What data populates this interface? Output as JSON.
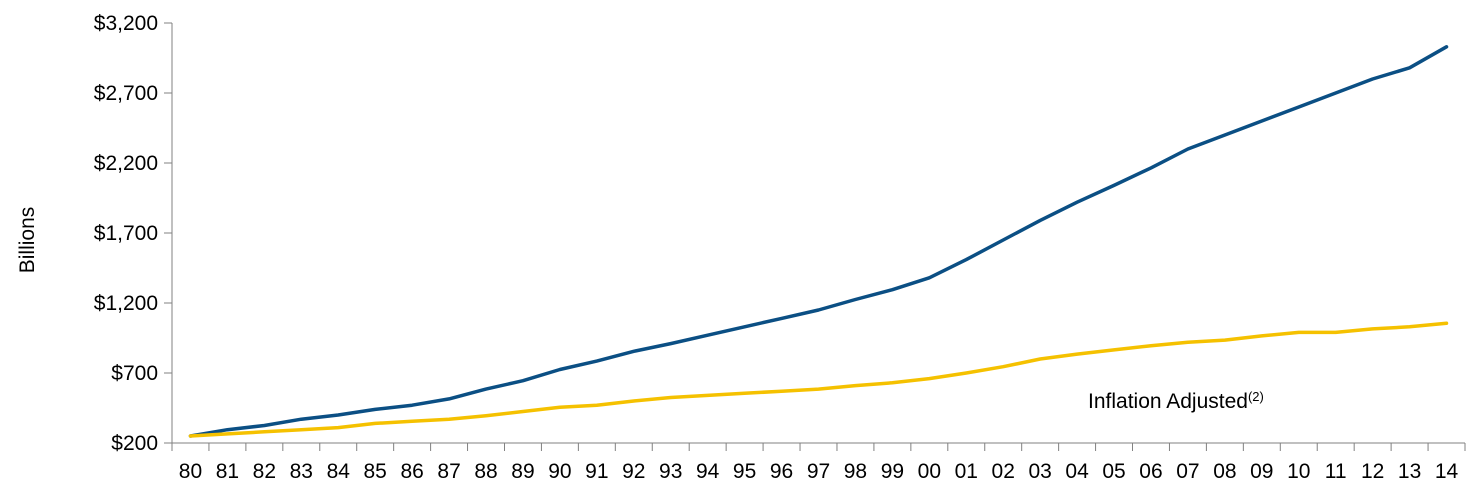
{
  "chart_data": {
    "type": "line",
    "title": "",
    "xlabel": "",
    "ylabel": "Billions",
    "ylim": [
      200,
      3200
    ],
    "yticks": [
      200,
      700,
      1200,
      1700,
      2200,
      2700,
      3200
    ],
    "ytick_labels": [
      "$200",
      "$700",
      "$1,200",
      "$1,700",
      "$2,200",
      "$2,700",
      "$3,200"
    ],
    "categories": [
      "80",
      "81",
      "82",
      "83",
      "84",
      "85",
      "86",
      "87",
      "88",
      "89",
      "90",
      "91",
      "92",
      "93",
      "94",
      "95",
      "96",
      "97",
      "98",
      "99",
      "00",
      "01",
      "02",
      "03",
      "04",
      "05",
      "06",
      "07",
      "08",
      "09",
      "10",
      "11",
      "12",
      "13",
      "14"
    ],
    "series": [
      {
        "color": "#0b4f84",
        "values": [
          250,
          295,
          325,
          370,
          400,
          440,
          470,
          515,
          585,
          645,
          725,
          785,
          855,
          910,
          970,
          1030,
          1090,
          1150,
          1225,
          1295,
          1380,
          1510,
          1650,
          1790,
          1920,
          2040,
          2165,
          2300,
          2400,
          2500,
          2600,
          2700,
          2800,
          2880,
          3030
        ]
      },
      {
        "color": "#f5c100",
        "values": [
          250,
          265,
          280,
          295,
          310,
          340,
          355,
          370,
          395,
          425,
          455,
          470,
          500,
          525,
          540,
          555,
          570,
          585,
          610,
          630,
          660,
          700,
          745,
          800,
          835,
          865,
          895,
          920,
          935,
          965,
          990,
          990,
          1015,
          1030,
          1055
        ]
      }
    ],
    "annotation": {
      "text": "Inflation Adjusted",
      "superscript": "(2)"
    }
  }
}
